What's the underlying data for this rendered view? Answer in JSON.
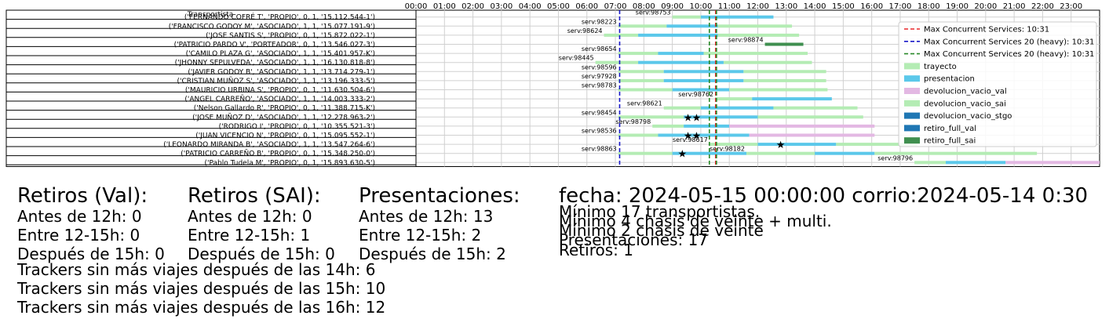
{
  "chart_data": {
    "type": "gantt",
    "table_header": "Transportista",
    "transportistas": [
      "('FERNANDO COFRÉ T', 'PROPIO', 0, 1, '15.112.544-1')",
      "('FRANCISCO GODOY M', 'ASOCIADO', 1, 1, '15.077.191-9')",
      "('JOSE SANTIS S', 'PROPIO', 0, 1, '15.872.022-1')",
      "('PATRICIO PARDO V', 'PORTEADOR', 0, 1, '13.546.027-3')",
      "('CAMILO PLAZA G', 'ASOCIADO', 1, 1, '15.401.957-K')",
      "('JHONNY SEPULVEDA', 'ASOCIADO', 1, 1, '16.130.818-8')",
      "('JAVIER GODOY B', 'ASOCIADO', 1, 1, '13.714.279-1')",
      "('CRISTIAN MUÑOZ S', 'ASOCIADO', 1, 1, '13.196.333-5')",
      "('MAURICIO URBINA S', 'PROPIO', 0, 1, '11.630.504-6')",
      "('ANGEL CARREÑO', 'ASOCIADO', 1, 1, '14.003.333-2')",
      "('Nelson Gallardo R', 'PROPIO', 0, 1, '11.388.715-K')",
      "('JOSE MUÑOZ D', 'ASOCIADO', 1, 1, '12.278.963-2')",
      "('RODRIGO  I', 'PROPIO', 0, 1, '10.355.521-3')",
      "('JUAN VICENCIO N', 'PROPIO', 0, 1, '15.095.552-1')",
      "('LEONARDO MIRANDA B', 'ASOCIADO', 1, 1, '13.547.264-6')",
      "('PATRICIO CARREÑO B', 'PROPIO', 0, 1, '15.348.250-0')",
      "('Pablo Tudela M', 'PROPIO', 0, 1, '15.893.630-5')"
    ],
    "x_ticks": [
      "00:00",
      "01:00",
      "02:00",
      "03:00",
      "04:00",
      "05:00",
      "06:00",
      "07:00",
      "08:00",
      "09:00",
      "10:00",
      "11:00",
      "12:00",
      "13:00",
      "14:00",
      "15:00",
      "16:00",
      "17:00",
      "18:00",
      "19:00",
      "20:00",
      "21:00",
      "22:00",
      "23:00"
    ],
    "xlim": [
      0,
      24
    ],
    "grid": true,
    "legend_position": "top-right",
    "colors": {
      "trayecto": "#b4ecb4",
      "presentacion": "#5bc8ea",
      "devolucion_vacio_val": "#e3b8e3",
      "devolucion_vacio_sai": "#b4ecb4",
      "devolucion_vacio_stgo": "#1f77b4",
      "retiro_full_val": "#1f77b4",
      "retiro_full_sai": "#3f8f4f",
      "max_red": "#e8262a",
      "max_blue": "#1818c8",
      "max_green": "#2a8a2a",
      "grid": "#d0d0d0"
    },
    "legend": [
      {
        "label": "Max Concurrent Services: 10:31",
        "kind": "line",
        "color_key": "max_red"
      },
      {
        "label": "Max Concurrent Services 20 (heavy): 10:31",
        "kind": "line",
        "color_key": "max_blue"
      },
      {
        "label": "Max Concurrent Services 20 (heavy): 10:31",
        "kind": "line",
        "color_key": "max_green"
      },
      {
        "label": "trayecto",
        "kind": "patch",
        "color_key": "trayecto"
      },
      {
        "label": "presentacion",
        "kind": "patch",
        "color_key": "presentacion"
      },
      {
        "label": "devolucion_vacio_val",
        "kind": "patch",
        "color_key": "devolucion_vacio_val"
      },
      {
        "label": "devolucion_vacio_sai",
        "kind": "patch",
        "color_key": "devolucion_vacio_sai"
      },
      {
        "label": "devolucion_vacio_stgo",
        "kind": "patch",
        "color_key": "devolucion_vacio_stgo"
      },
      {
        "label": "retiro_full_val",
        "kind": "patch",
        "color_key": "retiro_full_val"
      },
      {
        "label": "retiro_full_sai",
        "kind": "patch",
        "color_key": "retiro_full_sai"
      }
    ],
    "vlines": [
      {
        "x": 7.15,
        "color_key": "max_blue"
      },
      {
        "x": 10.3,
        "color_key": "max_green"
      },
      {
        "x": 10.52,
        "color_key": "max_red"
      },
      {
        "x": 10.55,
        "color_key": "max_green"
      }
    ],
    "services": [
      {
        "row": 0,
        "label": "serv:98753",
        "trayecto": [
          9.0,
          10.0
        ],
        "presentacion": [
          10.0,
          12.55
        ]
      },
      {
        "row": 1,
        "label": "serv:98223",
        "trayecto": [
          7.1,
          8.8
        ],
        "presentacion": [
          8.8,
          10.6
        ],
        "tail": [
          10.6,
          13.2
        ]
      },
      {
        "row": 2,
        "label": "serv:98624",
        "trayecto": [
          6.6,
          7.8
        ],
        "presentacion": [
          7.8,
          10.6
        ],
        "tail": [
          10.6,
          13.45
        ]
      },
      {
        "row": 3,
        "label": "serv:98874",
        "retiro_full_sai": [
          12.25,
          13.6
        ]
      },
      {
        "row": 4,
        "label": "serv:98654",
        "trayecto": [
          7.1,
          8.5
        ],
        "presentacion": [
          8.5,
          10.1
        ],
        "tail": [
          10.1,
          13.75
        ]
      },
      {
        "row": 5,
        "label": "serv:98445",
        "trayecto": [
          6.3,
          7.8
        ],
        "presentacion": [
          7.8,
          10.8
        ],
        "tail": [
          10.8,
          13.9
        ]
      },
      {
        "row": 6,
        "label": "serv:98596",
        "trayecto": [
          7.1,
          8.7
        ],
        "presentacion": [
          8.7,
          11.5
        ],
        "tail": [
          11.5,
          14.4
        ]
      },
      {
        "row": 7,
        "label": "serv:97928",
        "trayecto": [
          7.1,
          8.7
        ],
        "presentacion": [
          8.7,
          11.5
        ],
        "tail": [
          11.5,
          14.4
        ]
      },
      {
        "row": 8,
        "label": "serv:98783",
        "trayecto": [
          7.1,
          9.0
        ],
        "presentacion": [
          9.0,
          11.0
        ],
        "tail": [
          11.0,
          14.45
        ]
      },
      {
        "row": 9,
        "label": "serv:98762",
        "trayecto": [
          10.5,
          11.8
        ],
        "presentacion": [
          11.8,
          14.6
        ]
      },
      {
        "row": 10,
        "label": "serv:98621",
        "trayecto": [
          8.7,
          10.0
        ],
        "presentacion": [
          10.0,
          12.55
        ],
        "tail": [
          12.55,
          15.5
        ]
      },
      {
        "row": 11,
        "label": "serv:98454",
        "trayecto": [
          7.1,
          9.4
        ],
        "presentacion": [
          9.4,
          12.0
        ],
        "tail": [
          12.0,
          15.7
        ],
        "stars": [
          9.55,
          9.85
        ]
      },
      {
        "row": 12,
        "label": "serv:98798",
        "trayecto": [
          8.3,
          9.4
        ],
        "presentacion": [
          9.4,
          11.0
        ],
        "tail_val": [
          11.0,
          16.1
        ]
      },
      {
        "row": 13,
        "label": "serv:98536",
        "trayecto": [
          7.1,
          8.5
        ],
        "presentacion": [
          8.5,
          11.7
        ],
        "tail_val": [
          11.7,
          16.1
        ],
        "stars": [
          9.55,
          9.85
        ]
      },
      {
        "row": 14,
        "label": "serv:98617",
        "trayecto": [
          10.3,
          12.0
        ],
        "presentacion": [
          12.0,
          14.75
        ],
        "tail": [
          14.75,
          17.6
        ],
        "stars": [
          12.8
        ]
      },
      {
        "row": 15,
        "label": "serv:98863",
        "trayecto": [
          7.1,
          9.0
        ],
        "presentacion": [
          9.0,
          11.6
        ],
        "stars": [
          9.35
        ]
      },
      {
        "row": 15,
        "label": "serv:98182",
        "trayecto": [
          11.6,
          14.0
        ],
        "presentacion": [
          14.0,
          16.1
        ],
        "tail": [
          16.1,
          21.8
        ]
      },
      {
        "row": 16,
        "label": "serv:98796",
        "trayecto": [
          17.5,
          18.6
        ],
        "presentacion": [
          18.6,
          20.7
        ],
        "tail_val": [
          20.7,
          24.0
        ]
      }
    ]
  },
  "stats": {
    "col1": {
      "heading": "Retiros (Val):",
      "lines": [
        "Antes de 12h: 0",
        "Entre 12-15h: 0",
        "Después de 15h: 0"
      ]
    },
    "col2": {
      "heading": "Retiros (SAI):",
      "lines": [
        "Antes de 12h: 0",
        "Entre 12-15h: 1",
        "Después de 15h: 0"
      ]
    },
    "col3": {
      "heading": "Presentaciones:",
      "lines": [
        "Antes de 12h: 13",
        "Entre 12-15h: 2",
        "Después de 15h: 2"
      ]
    },
    "col4": {
      "heading": "fecha: 2024-05-15 00:00:00  corrio:2024-05-14 0:30",
      "lines": [
        "Mínimo 17 transportistas.",
        "Mínimo 4 chasis de veinte + multi.",
        "Mínimo 2 chasis de veinte",
        "Presentaciones: 17",
        "Retiros: 1"
      ]
    },
    "trackers": [
      "Trackers sin más viajes después de las 14h: 6",
      "Trackers sin más viajes después de las 15h: 10",
      "Trackers sin más viajes después de las 16h: 12"
    ]
  }
}
